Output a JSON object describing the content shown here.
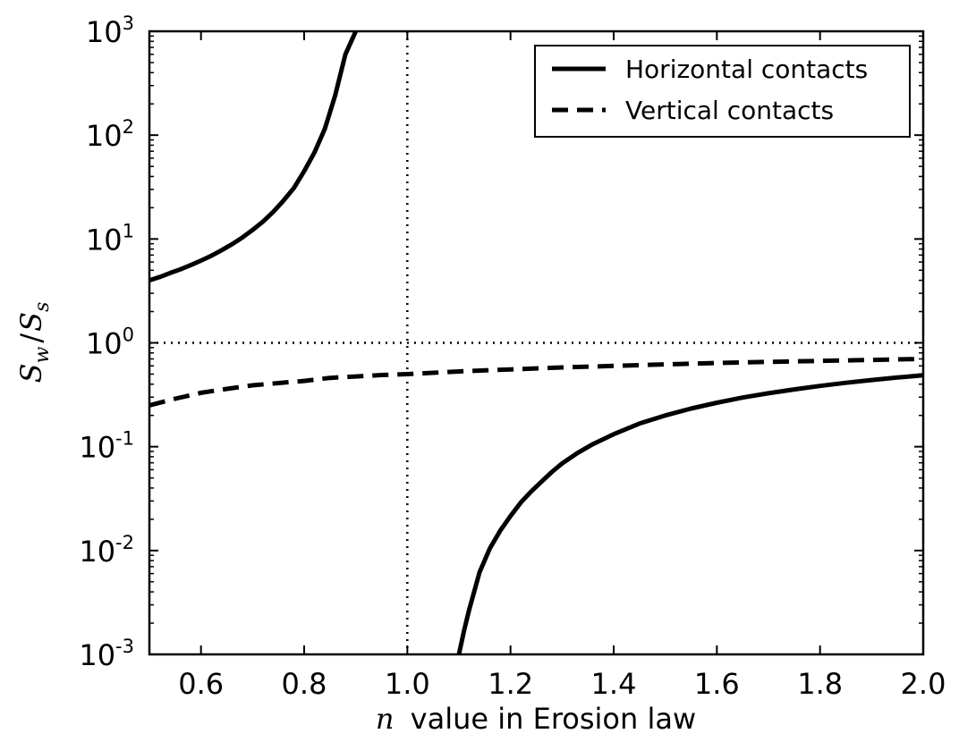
{
  "chart_data": {
    "type": "line",
    "title": "",
    "xlabel": {
      "var": "n",
      "text": "value in Erosion law"
    },
    "ylabel": {
      "numerator_var": "S",
      "numerator_sub": "w",
      "slash": "/",
      "denominator_var": "S",
      "denominator_sub": "s"
    },
    "xlim": [
      0.5,
      2.0
    ],
    "ylim": [
      0.001,
      1000
    ],
    "yscale": "log",
    "grid": false,
    "legend_position": "top-right",
    "x_ticks": [
      "0.6",
      "0.8",
      "1.0",
      "1.2",
      "1.4",
      "1.6",
      "1.8",
      "2.0"
    ],
    "x_tick_values": [
      0.6,
      0.8,
      1.0,
      1.2,
      1.4,
      1.6,
      1.8,
      2.0
    ],
    "y_ticks": [
      {
        "value": 0.001,
        "base": "10",
        "exp": "-3"
      },
      {
        "value": 0.01,
        "base": "10",
        "exp": "-2"
      },
      {
        "value": 0.1,
        "base": "10",
        "exp": "-1"
      },
      {
        "value": 1,
        "base": "10",
        "exp": "0"
      },
      {
        "value": 10,
        "base": "10",
        "exp": "1"
      },
      {
        "value": 100,
        "base": "10",
        "exp": "2"
      },
      {
        "value": 1000,
        "base": "10",
        "exp": "3"
      }
    ],
    "reference_lines": [
      {
        "orientation": "vertical",
        "x": 1.0,
        "style": "dotted"
      },
      {
        "orientation": "horizontal",
        "y": 1.0,
        "style": "dotted"
      }
    ],
    "series": [
      {
        "name": "Horizontal contacts",
        "style": "solid",
        "segments": [
          {
            "x": [
              0.5,
              0.52,
              0.54,
              0.56,
              0.58,
              0.6,
              0.62,
              0.64,
              0.66,
              0.68,
              0.7,
              0.72,
              0.74,
              0.76,
              0.78,
              0.8,
              0.82,
              0.84,
              0.86,
              0.88,
              0.9
            ],
            "y": [
              4.0,
              4.3,
              4.7,
              5.1,
              5.6,
              6.2,
              6.9,
              7.8,
              8.9,
              10.3,
              12.2,
              14.7,
              18.2,
              23.4,
              31.0,
              45.0,
              68.0,
              115.0,
              240.0,
              600.0,
              1000.0
            ]
          },
          {
            "x": [
              1.1,
              1.11,
              1.12,
              1.14,
              1.16,
              1.18,
              1.2,
              1.22,
              1.24,
              1.26,
              1.28,
              1.3,
              1.33,
              1.36,
              1.4,
              1.45,
              1.5,
              1.55,
              1.6,
              1.65,
              1.7,
              1.75,
              1.8,
              1.85,
              1.9,
              1.95,
              2.0
            ],
            "y": [
              0.001,
              0.0017,
              0.0027,
              0.0062,
              0.0105,
              0.0155,
              0.0215,
              0.029,
              0.037,
              0.046,
              0.057,
              0.069,
              0.087,
              0.106,
              0.132,
              0.167,
              0.2,
              0.233,
              0.265,
              0.297,
              0.327,
              0.356,
              0.385,
              0.412,
              0.438,
              0.463,
              0.487
            ]
          }
        ]
      },
      {
        "name": "Vertical contacts",
        "style": "dashed",
        "segments": [
          {
            "x": [
              0.5,
              0.55,
              0.6,
              0.65,
              0.7,
              0.75,
              0.8,
              0.85,
              0.9,
              0.95,
              1.0,
              1.1,
              1.2,
              1.3,
              1.4,
              1.5,
              1.6,
              1.7,
              1.8,
              1.9,
              2.0
            ],
            "y": [
              0.25,
              0.29,
              0.33,
              0.36,
              0.39,
              0.41,
              0.43,
              0.46,
              0.475,
              0.49,
              0.5,
              0.53,
              0.555,
              0.58,
              0.6,
              0.62,
              0.64,
              0.655,
              0.67,
              0.685,
              0.7
            ]
          }
        ]
      }
    ]
  }
}
